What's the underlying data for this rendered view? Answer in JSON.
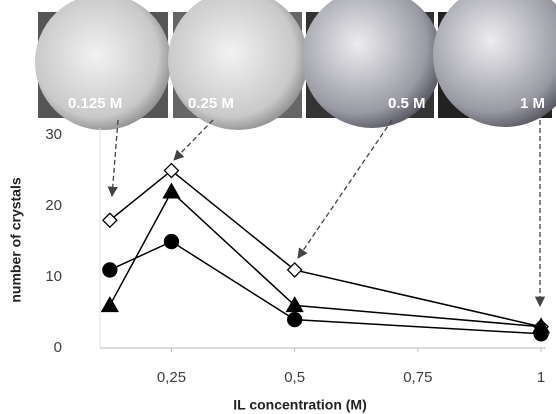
{
  "chart_data": {
    "type": "line",
    "x_label": "IL concentration (M)",
    "y_label": "number of crystals",
    "x": [
      0.125,
      0.25,
      0.5,
      1
    ],
    "series": [
      {
        "marker": "diamond",
        "color": "#000000",
        "values": [
          18,
          25,
          11,
          3
        ]
      },
      {
        "marker": "triangle",
        "color": "#000000",
        "values": [
          6,
          22,
          6,
          3
        ]
      },
      {
        "marker": "circle",
        "color": "#000000",
        "values": [
          11,
          15,
          4,
          2
        ]
      }
    ],
    "xlim": [
      0.105,
      1.01
    ],
    "xticks": [
      {
        "value": 0.25,
        "label": "0,25"
      },
      {
        "value": 0.5,
        "label": "0,5"
      },
      {
        "value": 0.75,
        "label": "0,75"
      },
      1
    ],
    "ylim": [
      0,
      31
    ],
    "yticks": [
      0,
      10,
      20,
      30
    ],
    "grid": false,
    "photo_labels": [
      "0.125 M",
      "0.25 M",
      "0.5 M",
      "1 M"
    ]
  }
}
